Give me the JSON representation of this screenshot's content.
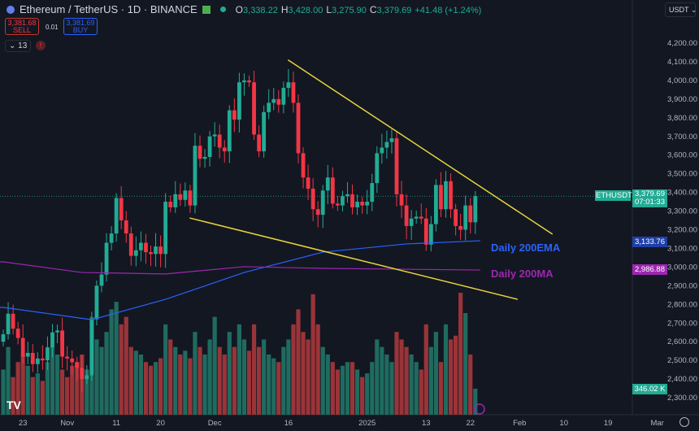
{
  "header": {
    "symbol": "Ethereum / TetherUS · 1D · BINANCE",
    "o_label": "O",
    "o": "3,338.22",
    "h_label": "H",
    "h": "3,428.00",
    "l_label": "L",
    "l": "3,275.90",
    "c_label": "C",
    "c": "3,379.69",
    "change": "+41.48 (+1.24%)"
  },
  "trade": {
    "sell_price": "3,381.68",
    "sell_label": "SELL",
    "spread": "0.01",
    "buy_price": "3,381.69",
    "buy_label": "BUY"
  },
  "indicator_count": "13",
  "currency": "USDT",
  "tags": {
    "ticker": "ETHUSDT",
    "price": "3,379.69",
    "countdown": "07:01:33",
    "ema": "3,133.76",
    "ma": "2,986.88",
    "volume": "346.02 K"
  },
  "annotations": {
    "ema_label": "Daily 200EMA",
    "ma_label": "Daily 200MA"
  },
  "colors": {
    "up": "#22ab94",
    "down": "#f23645",
    "ema": "#2962ff",
    "ma": "#9c27b0",
    "trendline": "#e8d43a"
  },
  "chart_data": {
    "type": "candlestick",
    "start_date": "2024-10-19",
    "price_ticks": [
      "4,200.00",
      "4,100.00",
      "4,000.00",
      "3,900.00",
      "3,800.00",
      "3,700.00",
      "3,600.00",
      "3,500.00",
      "3,400.00",
      "3,300.00",
      "3,200.00",
      "3,100.00",
      "3,000.00",
      "2,900.00",
      "2,800.00",
      "2,700.00",
      "2,600.00",
      "2,500.00",
      "2,400.00",
      "2,300.00"
    ],
    "price_range": [
      2240,
      4250
    ],
    "x_ticks": [
      {
        "label": "23",
        "day": 4
      },
      {
        "label": "Nov",
        "day": 13
      },
      {
        "label": "11",
        "day": 23
      },
      {
        "label": "20",
        "day": 32
      },
      {
        "label": "Dec",
        "day": 43
      },
      {
        "label": "16",
        "day": 58
      },
      {
        "label": "2025",
        "day": 74
      },
      {
        "label": "13",
        "day": 86
      },
      {
        "label": "22",
        "day": 95
      },
      {
        "label": "Feb",
        "day": 105
      },
      {
        "label": "10",
        "day": 114
      },
      {
        "label": "19",
        "day": 123
      },
      {
        "label": "Mar",
        "day": 133
      }
    ],
    "closes": [
      2640,
      2750,
      2670,
      2620,
      2520,
      2540,
      2480,
      2510,
      2500,
      2570,
      2650,
      2660,
      2520,
      2510,
      2490,
      2460,
      2400,
      2420,
      2720,
      2900,
      2960,
      3130,
      3180,
      3370,
      3250,
      3180,
      3060,
      3090,
      3130,
      3080,
      3070,
      3110,
      3070,
      3350,
      3320,
      3390,
      3360,
      3410,
      3330,
      3650,
      3580,
      3590,
      3700,
      3710,
      3640,
      3620,
      3840,
      3790,
      3990,
      4000,
      3990,
      3710,
      3620,
      3830,
      3880,
      3900,
      3870,
      3960,
      3990,
      3880,
      3610,
      3480,
      3420,
      3310,
      3280,
      3410,
      3480,
      3340,
      3330,
      3380,
      3390,
      3320,
      3350,
      3330,
      3350,
      3450,
      3610,
      3640,
      3670,
      3690,
      3390,
      3330,
      3220,
      3260,
      3270,
      3260,
      3120,
      3230,
      3440,
      3310,
      3460,
      3310,
      3220,
      3200,
      3330,
      3240,
      3380
    ],
    "volumes_k": [
      600,
      900,
      500,
      700,
      800,
      650,
      500,
      550,
      450,
      700,
      900,
      800,
      600,
      500,
      650,
      700,
      800,
      600,
      1300,
      1000,
      900,
      1100,
      1400,
      1500,
      1200,
      1300,
      900,
      850,
      800,
      700,
      650,
      700,
      750,
      1200,
      1000,
      900,
      800,
      850,
      750,
      1100,
      900,
      800,
      1000,
      1300,
      900,
      800,
      1100,
      900,
      1200,
      1000,
      850,
      1200,
      900,
      1000,
      800,
      750,
      700,
      900,
      1000,
      1200,
      1400,
      1100,
      1000,
      1600,
      1200,
      900,
      800,
      700,
      600,
      650,
      700,
      700,
      600,
      500,
      550,
      700,
      1000,
      900,
      800,
      700,
      1100,
      1000,
      900,
      800,
      700,
      600,
      1200,
      900,
      1100,
      700,
      1200,
      1000,
      1050,
      1620,
      1350,
      800,
      346
    ],
    "ema200": [
      [
        0,
        2784
      ],
      [
        18,
        2718
      ],
      [
        33,
        2827
      ],
      [
        49,
        2971
      ],
      [
        65,
        3080
      ],
      [
        82,
        3124
      ],
      [
        97,
        3141
      ]
    ],
    "ma200": [
      [
        0,
        3028
      ],
      [
        16,
        2971
      ],
      [
        33,
        2963
      ],
      [
        49,
        3002
      ],
      [
        65,
        2993
      ],
      [
        97,
        2984
      ]
    ],
    "trendlines": [
      {
        "name": "resistance",
        "from": [
          57.9,
          4110
        ],
        "to": [
          111.7,
          3176
        ]
      },
      {
        "name": "support",
        "from": [
          37.9,
          3263
        ],
        "to": [
          104.6,
          2827
        ]
      }
    ]
  }
}
